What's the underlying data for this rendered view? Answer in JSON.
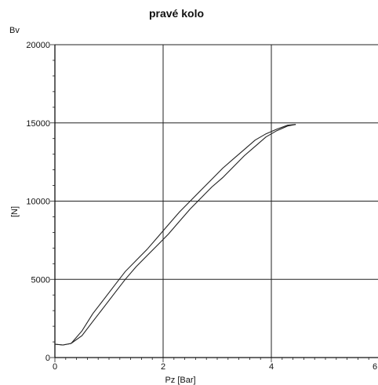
{
  "chart_data": {
    "type": "line",
    "title": "pravé kolo",
    "corner_label": "Bv",
    "xlabel": "Pz [Bar]",
    "ylabel": "[N]",
    "xlim": [
      0,
      6
    ],
    "ylim": [
      0,
      20000
    ],
    "x_ticks": [
      "0",
      "2",
      "4",
      "6"
    ],
    "y_ticks": [
      "0",
      "5000",
      "10000",
      "15000",
      "20000"
    ],
    "grid": true,
    "series": [
      {
        "x": [
          0.0,
          0.15,
          0.3,
          0.5,
          0.7,
          0.9,
          1.1,
          1.3,
          1.5,
          1.7,
          1.9,
          2.1,
          2.3,
          2.5,
          2.7,
          2.9,
          3.1,
          3.3,
          3.5,
          3.7,
          3.9,
          4.1,
          4.3,
          4.45
        ],
        "y": [
          850,
          800,
          900,
          1400,
          2300,
          3200,
          4100,
          5000,
          5800,
          6500,
          7200,
          7900,
          8700,
          9500,
          10200,
          10900,
          11500,
          12200,
          12900,
          13500,
          14100,
          14500,
          14800,
          14900
        ]
      },
      {
        "x": [
          0.0,
          0.15,
          0.3,
          0.5,
          0.7,
          0.9,
          1.1,
          1.3,
          1.5,
          1.7,
          1.9,
          2.1,
          2.3,
          2.5,
          2.7,
          2.9,
          3.1,
          3.3,
          3.5,
          3.7,
          3.9,
          4.1,
          4.3,
          4.45
        ],
        "y": [
          850,
          800,
          900,
          1700,
          2800,
          3700,
          4600,
          5500,
          6200,
          6900,
          7700,
          8500,
          9300,
          10000,
          10700,
          11400,
          12100,
          12700,
          13300,
          13900,
          14300,
          14600,
          14850,
          14900
        ]
      }
    ]
  }
}
